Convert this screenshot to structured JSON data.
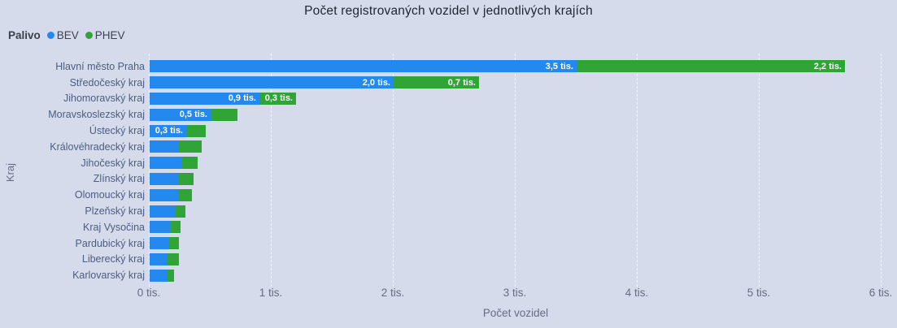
{
  "title": "Počet registrovaných vozidel v jednotlivých krajích",
  "legend": {
    "title": "Palivo",
    "items": [
      {
        "label": "BEV",
        "color": "#2489ef"
      },
      {
        "label": "PHEV",
        "color": "#31a438"
      }
    ]
  },
  "colors": {
    "background": "#d5dbea",
    "bev": "#2489ef",
    "phev": "#31a438",
    "bar_label": "#ffffff"
  },
  "chart_data": {
    "type": "bar",
    "orientation": "horizontal",
    "stacked": true,
    "title": "Počet registrovaných vozidel v jednotlivých krajích",
    "xlabel": "Počet vozidel",
    "ylabel": "Kraj",
    "unit": "tis.",
    "xlim": [
      0,
      6
    ],
    "x_ticks": [
      "0 tis.",
      "1 tis.",
      "2 tis.",
      "3 tis.",
      "4 tis.",
      "5 tis.",
      "6 tis."
    ],
    "gridlines": "vertical-dashed",
    "legend_position": "top-left",
    "categories": [
      "Hlavní město Praha",
      "Středočeský kraj",
      "Jihomoravský kraj",
      "Moravskoslezský kraj",
      "Ústecký kraj",
      "Královéhradecký kraj",
      "Jihočeský kraj",
      "Zlínský kraj",
      "Olomoucký kraj",
      "Plzeňský kraj",
      "Kraj Vysočina",
      "Pardubický kraj",
      "Liberecký kraj",
      "Karlovarský kraj"
    ],
    "series": [
      {
        "name": "BEV",
        "values": [
          3.5,
          2.0,
          0.9,
          0.5,
          0.3,
          0.23,
          0.26,
          0.24,
          0.23,
          0.21,
          0.17,
          0.16,
          0.14,
          0.14
        ],
        "labels": [
          "3,5 tis.",
          "2,0 tis.",
          "0,9 tis.",
          "0,5 tis.",
          "0,3 tis.",
          "",
          "",
          "",
          "",
          "",
          "",
          "",
          "",
          ""
        ]
      },
      {
        "name": "PHEV",
        "values": [
          2.2,
          0.7,
          0.3,
          0.22,
          0.16,
          0.19,
          0.13,
          0.12,
          0.11,
          0.08,
          0.08,
          0.08,
          0.1,
          0.06
        ],
        "labels": [
          "2,2 tis.",
          "0,7 tis.",
          "0,3 tis.",
          "",
          "",
          "",
          "",
          "",
          "",
          "",
          "",
          "",
          "",
          ""
        ]
      }
    ]
  }
}
